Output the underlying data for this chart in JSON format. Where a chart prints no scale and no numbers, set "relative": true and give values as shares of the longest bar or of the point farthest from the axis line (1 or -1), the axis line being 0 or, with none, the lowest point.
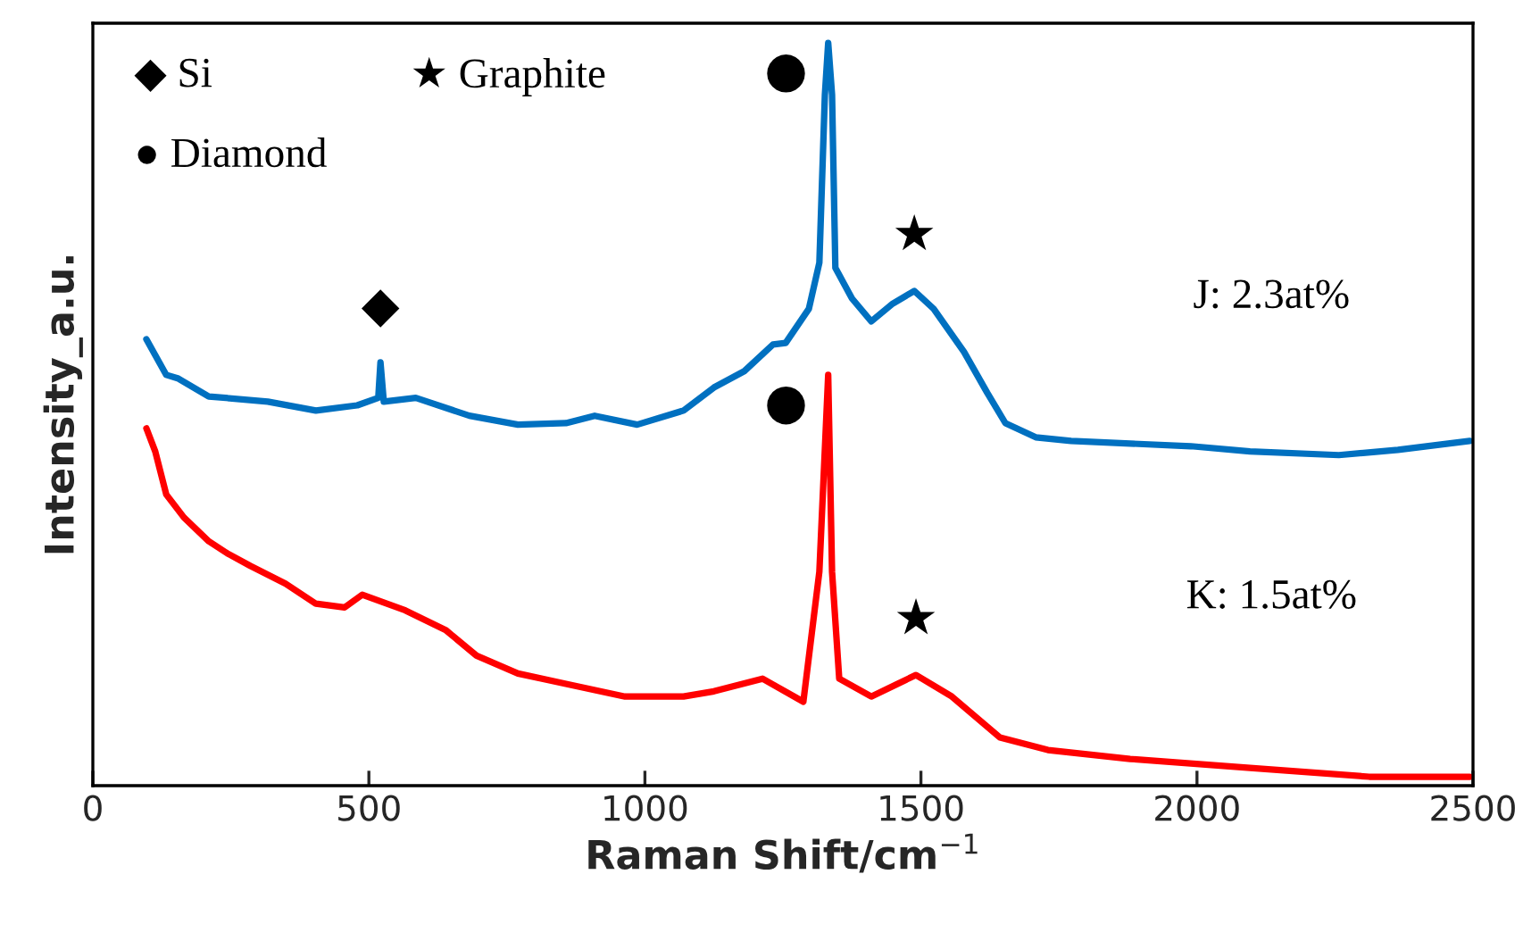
{
  "chart_data": {
    "type": "line",
    "relative": true,
    "xlabel": "Raman Shift/cm$^{−1}$",
    "ylabel": "Intensity_a.u.",
    "xlim": [
      0,
      2500
    ],
    "xticks": [
      0,
      500,
      1000,
      1500,
      2000,
      2500
    ],
    "tick_labels": "x",
    "grid": false,
    "legend": false,
    "line_style": "solid",
    "marker": "none",
    "series": [
      {
        "color": "#0070c0",
        "x": [
          97,
          133,
          155,
          210,
          317,
          404,
          479,
          517,
          521,
          527,
          585,
          682,
          770,
          857,
          909,
          986,
          1070,
          1125,
          1180,
          1232,
          1255,
          1297,
          1316,
          1326,
          1332,
          1339,
          1345,
          1375,
          1410,
          1449,
          1488,
          1523,
          1578,
          1620,
          1653,
          1708,
          1772,
          1989,
          2096,
          2257,
          2364,
          2494
        ],
        "values": [
          0.601,
          0.553,
          0.548,
          0.524,
          0.517,
          0.505,
          0.512,
          0.522,
          0.57,
          0.517,
          0.522,
          0.498,
          0.486,
          0.488,
          0.498,
          0.486,
          0.505,
          0.536,
          0.558,
          0.594,
          0.596,
          0.642,
          0.704,
          0.93,
          1.0,
          0.93,
          0.697,
          0.656,
          0.625,
          0.649,
          0.666,
          0.642,
          0.584,
          0.529,
          0.488,
          0.469,
          0.464,
          0.457,
          0.45,
          0.445,
          0.452,
          0.464
        ]
      },
      {
        "color": "#ff0000",
        "x": [
          97,
          113,
          133,
          165,
          210,
          243,
          285,
          349,
          404,
          456,
          488,
          566,
          640,
          695,
          770,
          857,
          964,
          1070,
          1125,
          1213,
          1287,
          1316,
          1332,
          1339,
          1352,
          1410,
          1491,
          1556,
          1643,
          1730,
          1879,
          2096,
          2312,
          2494
        ],
        "values": [
          0.481,
          0.45,
          0.392,
          0.361,
          0.329,
          0.313,
          0.296,
          0.272,
          0.245,
          0.24,
          0.257,
          0.236,
          0.209,
          0.175,
          0.151,
          0.137,
          0.12,
          0.12,
          0.127,
          0.144,
          0.113,
          0.288,
          0.553,
          0.288,
          0.144,
          0.12,
          0.149,
          0.12,
          0.065,
          0.048,
          0.036,
          0.024,
          0.012,
          0.012
        ]
      }
    ],
    "annotations": [
      "◆ Si",
      "★ Graphite",
      "● Diamond",
      {
        "text": "◆",
        "x": 521,
        "y": 0.57
      },
      {
        "text": "●",
        "x": 1332,
        "y": 1.0
      },
      {
        "text": "★",
        "x": 1488,
        "y": 0.666
      },
      {
        "text": "●",
        "x": 1332,
        "y": 0.553
      },
      {
        "text": "★",
        "x": 1491,
        "y": 0.149
      },
      "J: 2.3at%",
      "K: 1.5at%"
    ]
  }
}
